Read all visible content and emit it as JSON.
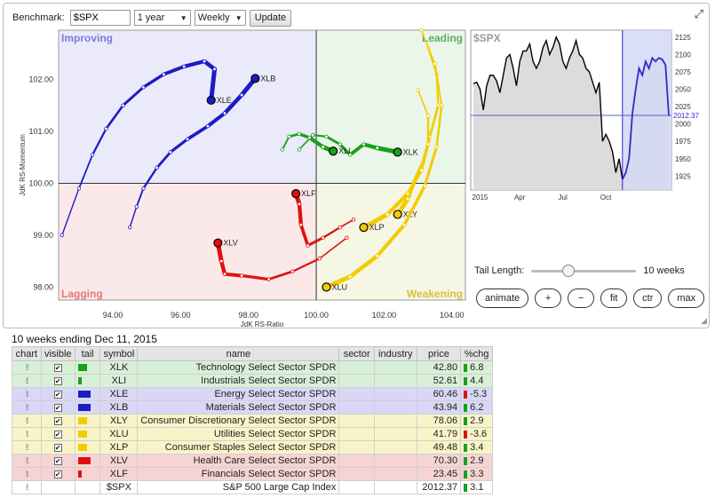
{
  "toolbar": {
    "benchmark_label": "Benchmark:",
    "benchmark_value": "$SPX",
    "period_value": "1 year",
    "interval_value": "Weekly",
    "update_label": "Update"
  },
  "rrg": {
    "quadrants": {
      "improving": "Improving",
      "leading": "Leading",
      "lagging": "Lagging",
      "weakening": "Weakening"
    },
    "quadrant_colors": {
      "improving": "#eaeafa",
      "leading": "#eaf6ea",
      "lagging": "#fbe9e9",
      "weakening": "#f6f6e4"
    },
    "quadrant_label_colors": {
      "improving": "#7b7bd9",
      "leading": "#5cae5c",
      "lagging": "#e07a7a",
      "weakening": "#d6c23a"
    },
    "xlabel": "JdK RS-Ratio",
    "ylabel": "JdK RS-Momentum",
    "x_ticks": [
      "94.00",
      "96.00",
      "98.00",
      "100.00",
      "102.00",
      "104.00"
    ],
    "y_ticks": [
      "102.00",
      "101.00",
      "100.00",
      "99.00",
      "98.00"
    ],
    "xlim": [
      92.4,
      104.4
    ],
    "ylim": [
      97.75,
      102.95
    ],
    "center": [
      100,
      100
    ],
    "tails": [
      {
        "symbol": "XLB",
        "color": "#1c1cc4",
        "points": [
          [
            94.5,
            99.15
          ],
          [
            94.7,
            99.55
          ],
          [
            94.9,
            99.9
          ],
          [
            95.3,
            100.3
          ],
          [
            95.7,
            100.6
          ],
          [
            96.2,
            100.85
          ],
          [
            96.8,
            101.1
          ],
          [
            97.3,
            101.35
          ],
          [
            97.8,
            101.7
          ],
          [
            98.2,
            102.02
          ]
        ]
      },
      {
        "symbol": "XLE",
        "color": "#1c1cc4",
        "points": [
          [
            92.5,
            99.0
          ],
          [
            93.0,
            99.9
          ],
          [
            93.4,
            100.55
          ],
          [
            93.8,
            101.05
          ],
          [
            94.3,
            101.5
          ],
          [
            94.9,
            101.85
          ],
          [
            95.5,
            102.1
          ],
          [
            96.1,
            102.25
          ],
          [
            96.7,
            102.35
          ],
          [
            97.0,
            102.2
          ],
          [
            96.9,
            101.6
          ]
        ]
      },
      {
        "symbol": "XLK",
        "color": "#1aa01a",
        "points": [
          [
            99.5,
            100.65
          ],
          [
            99.9,
            100.93
          ],
          [
            100.3,
            100.9
          ],
          [
            100.7,
            100.75
          ],
          [
            101.0,
            100.55
          ],
          [
            101.4,
            100.75
          ],
          [
            101.8,
            100.68
          ],
          [
            102.4,
            100.6
          ]
        ]
      },
      {
        "symbol": "XLI",
        "color": "#1aa01a",
        "points": [
          [
            99.0,
            100.65
          ],
          [
            99.2,
            100.9
          ],
          [
            99.5,
            100.95
          ],
          [
            99.8,
            100.88
          ],
          [
            100.2,
            100.7
          ],
          [
            100.5,
            100.62
          ]
        ]
      },
      {
        "symbol": "XLY",
        "color": "#f2cc00",
        "points": [
          [
            103.3,
            102.6
          ],
          [
            103.55,
            102.1
          ],
          [
            103.6,
            101.5
          ],
          [
            103.35,
            100.9
          ],
          [
            103.15,
            100.4
          ],
          [
            102.9,
            100.05
          ],
          [
            102.7,
            99.7
          ],
          [
            102.4,
            99.4
          ]
        ]
      },
      {
        "symbol": "XLU",
        "color": "#f2cc00",
        "points": [
          [
            103.1,
            102.95
          ],
          [
            103.5,
            102.3
          ],
          [
            103.7,
            101.5
          ],
          [
            103.55,
            100.7
          ],
          [
            103.2,
            99.95
          ],
          [
            102.6,
            99.2
          ],
          [
            101.8,
            98.6
          ],
          [
            101.0,
            98.2
          ],
          [
            100.3,
            98.0
          ]
        ]
      },
      {
        "symbol": "XLP",
        "color": "#f2cc00",
        "points": [
          [
            103.0,
            101.8
          ],
          [
            103.3,
            101.3
          ],
          [
            103.3,
            100.75
          ],
          [
            103.1,
            100.25
          ],
          [
            102.7,
            99.8
          ],
          [
            102.1,
            99.4
          ],
          [
            101.4,
            99.15
          ]
        ]
      },
      {
        "symbol": "XLV",
        "color": "#e01010",
        "points": [
          [
            100.9,
            98.95
          ],
          [
            100.1,
            98.55
          ],
          [
            99.3,
            98.3
          ],
          [
            98.6,
            98.15
          ],
          [
            97.8,
            98.22
          ],
          [
            97.3,
            98.25
          ],
          [
            97.2,
            98.5
          ],
          [
            97.1,
            98.85
          ]
        ]
      },
      {
        "symbol": "XLF",
        "color": "#e01010",
        "points": [
          [
            101.1,
            99.3
          ],
          [
            100.7,
            99.15
          ],
          [
            100.2,
            98.95
          ],
          [
            99.75,
            98.8
          ],
          [
            99.55,
            99.2
          ],
          [
            99.5,
            99.6
          ],
          [
            99.4,
            99.8
          ]
        ]
      }
    ]
  },
  "mini_chart": {
    "label": "$SPX",
    "x_labels": [
      "2015",
      "Apr",
      "Jul",
      "Oct"
    ],
    "y_ticks": [
      "2125",
      "2100",
      "2075",
      "2050",
      "2025",
      "2000",
      "1975",
      "1950",
      "1925"
    ],
    "ylim": [
      1905,
      2135
    ],
    "current_value": "2012.37",
    "values": [
      2058,
      2060,
      2050,
      2020,
      2055,
      2070,
      2070,
      2062,
      2045,
      2070,
      2095,
      2100,
      2080,
      2055,
      2090,
      2105,
      2105,
      2115,
      2090,
      2080,
      2090,
      2110,
      2120,
      2100,
      2110,
      2125,
      2115,
      2090,
      2080,
      2095,
      2105,
      2120,
      2100,
      2095,
      2080,
      2075,
      2060,
      2045,
      2060,
      1975,
      1985,
      1975,
      1960,
      1930,
      1950,
      1920,
      1930,
      1950,
      2015,
      2050,
      2080,
      2070,
      2090,
      2080,
      2095,
      2090,
      2095,
      2093,
      2085,
      2012
    ],
    "highlight_from_index": 45
  },
  "tail_length": {
    "label": "Tail Length:",
    "value_label": "10 weeks",
    "value": 10,
    "max": 30
  },
  "controls": [
    "animate",
    "+",
    "−",
    "fit",
    "ctr",
    "max"
  ],
  "caption": "10 weeks ending Dec 11, 2015",
  "table": {
    "columns": [
      "chart",
      "visible",
      "tail",
      "symbol",
      "name",
      "sector",
      "industry",
      "price",
      "%chg"
    ],
    "rows": [
      {
        "symbol": "XLK",
        "name": "Technology Select Sector SPDR",
        "sector": "",
        "industry": "",
        "price": "42.80",
        "chg": "6.8",
        "chg_color": "#1aa01a",
        "tail_color": "#1aa01a",
        "tail_len": 10,
        "row_bg": "#d8f0d8"
      },
      {
        "symbol": "XLI",
        "name": "Industrials Select Sector SPDR",
        "sector": "",
        "industry": "",
        "price": "52.61",
        "chg": "4.4",
        "chg_color": "#1aa01a",
        "tail_color": "#1aa01a",
        "tail_len": 4,
        "row_bg": "#d8f0d8"
      },
      {
        "symbol": "XLE",
        "name": "Energy Select Sector SPDR",
        "sector": "",
        "industry": "",
        "price": "60.46",
        "chg": "-5.3",
        "chg_color": "#e01010",
        "tail_color": "#1c1cc4",
        "tail_len": 14,
        "row_bg": "#d8d8f6"
      },
      {
        "symbol": "XLB",
        "name": "Materials Select Sector SPDR",
        "sector": "",
        "industry": "",
        "price": "43.94",
        "chg": "6.2",
        "chg_color": "#1aa01a",
        "tail_color": "#1c1cc4",
        "tail_len": 14,
        "row_bg": "#d8d8f6"
      },
      {
        "symbol": "XLY",
        "name": "Consumer Discretionary Select Sector SPDR",
        "sector": "",
        "industry": "",
        "price": "78.06",
        "chg": "2.9",
        "chg_color": "#1aa01a",
        "tail_color": "#f2cc00",
        "tail_len": 10,
        "row_bg": "#f8f4c8"
      },
      {
        "symbol": "XLU",
        "name": "Utilities Select Sector SPDR",
        "sector": "",
        "industry": "",
        "price": "41.79",
        "chg": "-3.6",
        "chg_color": "#e01010",
        "tail_color": "#f2cc00",
        "tail_len": 10,
        "row_bg": "#f8f4c8"
      },
      {
        "symbol": "XLP",
        "name": "Consumer Staples Select Sector SPDR",
        "sector": "",
        "industry": "",
        "price": "49.48",
        "chg": "3.4",
        "chg_color": "#1aa01a",
        "tail_color": "#f2cc00",
        "tail_len": 10,
        "row_bg": "#f8f4c8"
      },
      {
        "symbol": "XLV",
        "name": "Health Care Select Sector SPDR",
        "sector": "",
        "industry": "",
        "price": "70.30",
        "chg": "2.9",
        "chg_color": "#1aa01a",
        "tail_color": "#e01010",
        "tail_len": 14,
        "row_bg": "#f6d4d4"
      },
      {
        "symbol": "XLF",
        "name": "Financials Select Sector SPDR",
        "sector": "",
        "industry": "",
        "price": "23.45",
        "chg": "3.3",
        "chg_color": "#1aa01a",
        "tail_color": "#e01010",
        "tail_len": 4,
        "row_bg": "#f6d4d4"
      },
      {
        "symbol": "$SPX",
        "name": "S&P 500 Large Cap Index",
        "sector": "",
        "industry": "",
        "price": "2012.37",
        "chg": "3.1",
        "chg_color": "#1aa01a",
        "tail_color": "",
        "tail_len": 0,
        "row_bg": "#ffffff"
      }
    ]
  }
}
